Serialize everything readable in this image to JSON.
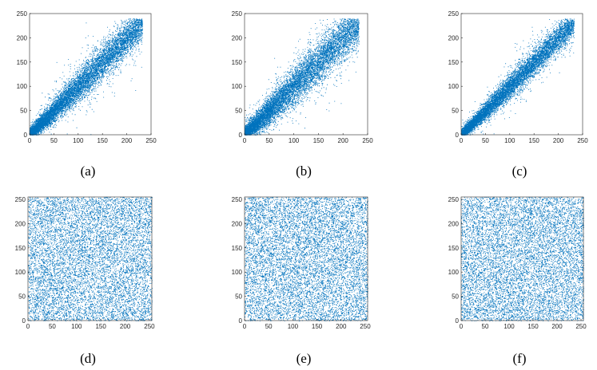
{
  "figure": {
    "colors": {
      "marker": "#0072BD",
      "axis": "#262626",
      "background": "#ffffff"
    }
  },
  "chart_data": [
    {
      "type": "scatter",
      "caption": "(a)",
      "pattern": "correlated",
      "spread": 18,
      "points_approx": 9000,
      "xlim": [
        0,
        250
      ],
      "ylim": [
        0,
        250
      ],
      "xticks": [
        "0",
        "50",
        "100",
        "150",
        "200",
        "250"
      ],
      "yticks": [
        "0",
        "50",
        "100",
        "150",
        "200",
        "250"
      ],
      "grid": false
    },
    {
      "type": "scatter",
      "caption": "(b)",
      "pattern": "correlated",
      "spread": 22,
      "points_approx": 9000,
      "xlim": [
        0,
        250
      ],
      "ylim": [
        0,
        250
      ],
      "xticks": [
        "0",
        "50",
        "100",
        "150",
        "200",
        "250"
      ],
      "yticks": [
        "0",
        "50",
        "100",
        "150",
        "200",
        "250"
      ],
      "grid": false
    },
    {
      "type": "scatter",
      "caption": "(c)",
      "pattern": "correlated",
      "spread": 14,
      "points_approx": 9000,
      "xlim": [
        0,
        250
      ],
      "ylim": [
        0,
        250
      ],
      "xticks": [
        "0",
        "50",
        "100",
        "150",
        "200",
        "250"
      ],
      "yticks": [
        "0",
        "50",
        "100",
        "150",
        "200",
        "250"
      ],
      "grid": false
    },
    {
      "type": "scatter",
      "caption": "(d)",
      "pattern": "uniform",
      "points_approx": 9000,
      "xlim": [
        0,
        255
      ],
      "ylim": [
        0,
        255
      ],
      "xticks": [
        "0",
        "50",
        "100",
        "150",
        "200",
        "250"
      ],
      "yticks": [
        "0",
        "50",
        "100",
        "150",
        "200",
        "250"
      ],
      "grid": false
    },
    {
      "type": "scatter",
      "caption": "(e)",
      "pattern": "uniform",
      "points_approx": 9000,
      "xlim": [
        0,
        255
      ],
      "ylim": [
        0,
        255
      ],
      "xticks": [
        "0",
        "50",
        "100",
        "150",
        "200",
        "250"
      ],
      "yticks": [
        "0",
        "50",
        "100",
        "150",
        "200",
        "250"
      ],
      "grid": false
    },
    {
      "type": "scatter",
      "caption": "(f)",
      "pattern": "uniform",
      "points_approx": 9000,
      "xlim": [
        0,
        255
      ],
      "ylim": [
        0,
        255
      ],
      "xticks": [
        "0",
        "50",
        "100",
        "150",
        "200",
        "250"
      ],
      "yticks": [
        "0",
        "50",
        "100",
        "150",
        "200",
        "250"
      ],
      "grid": false
    }
  ]
}
